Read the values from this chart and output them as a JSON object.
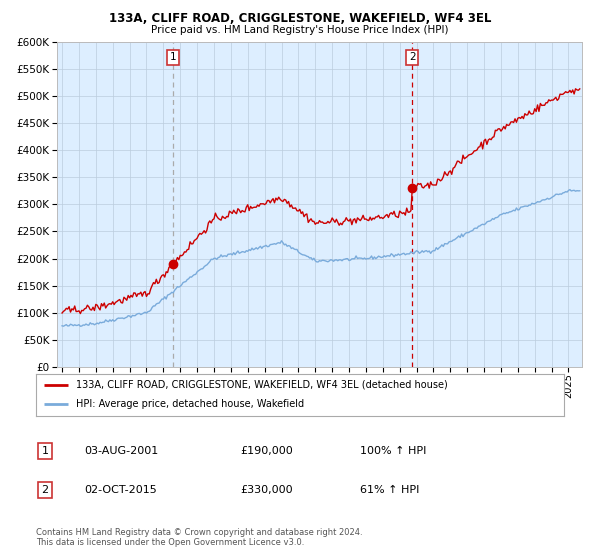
{
  "title1": "133A, CLIFF ROAD, CRIGGLESTONE, WAKEFIELD, WF4 3EL",
  "title2": "Price paid vs. HM Land Registry's House Price Index (HPI)",
  "legend_red": "133A, CLIFF ROAD, CRIGGLESTONE, WAKEFIELD, WF4 3EL (detached house)",
  "legend_blue": "HPI: Average price, detached house, Wakefield",
  "sale1_label": "1",
  "sale1_date": "03-AUG-2001",
  "sale1_price": "£190,000",
  "sale1_hpi": "100% ↑ HPI",
  "sale2_label": "2",
  "sale2_date": "02-OCT-2015",
  "sale2_price": "£330,000",
  "sale2_hpi": "61% ↑ HPI",
  "footer": "Contains HM Land Registry data © Crown copyright and database right 2024.\nThis data is licensed under the Open Government Licence v3.0.",
  "red_color": "#cc0000",
  "blue_color": "#7aabdb",
  "bg_color": "#ddeeff",
  "grid_color": "#bbccdd",
  "sale1_x": 2001.58,
  "sale1_y": 190000,
  "sale2_x": 2015.75,
  "sale2_y": 330000,
  "ylim": [
    0,
    600000
  ],
  "xlim_start": 1994.7,
  "xlim_end": 2025.8
}
